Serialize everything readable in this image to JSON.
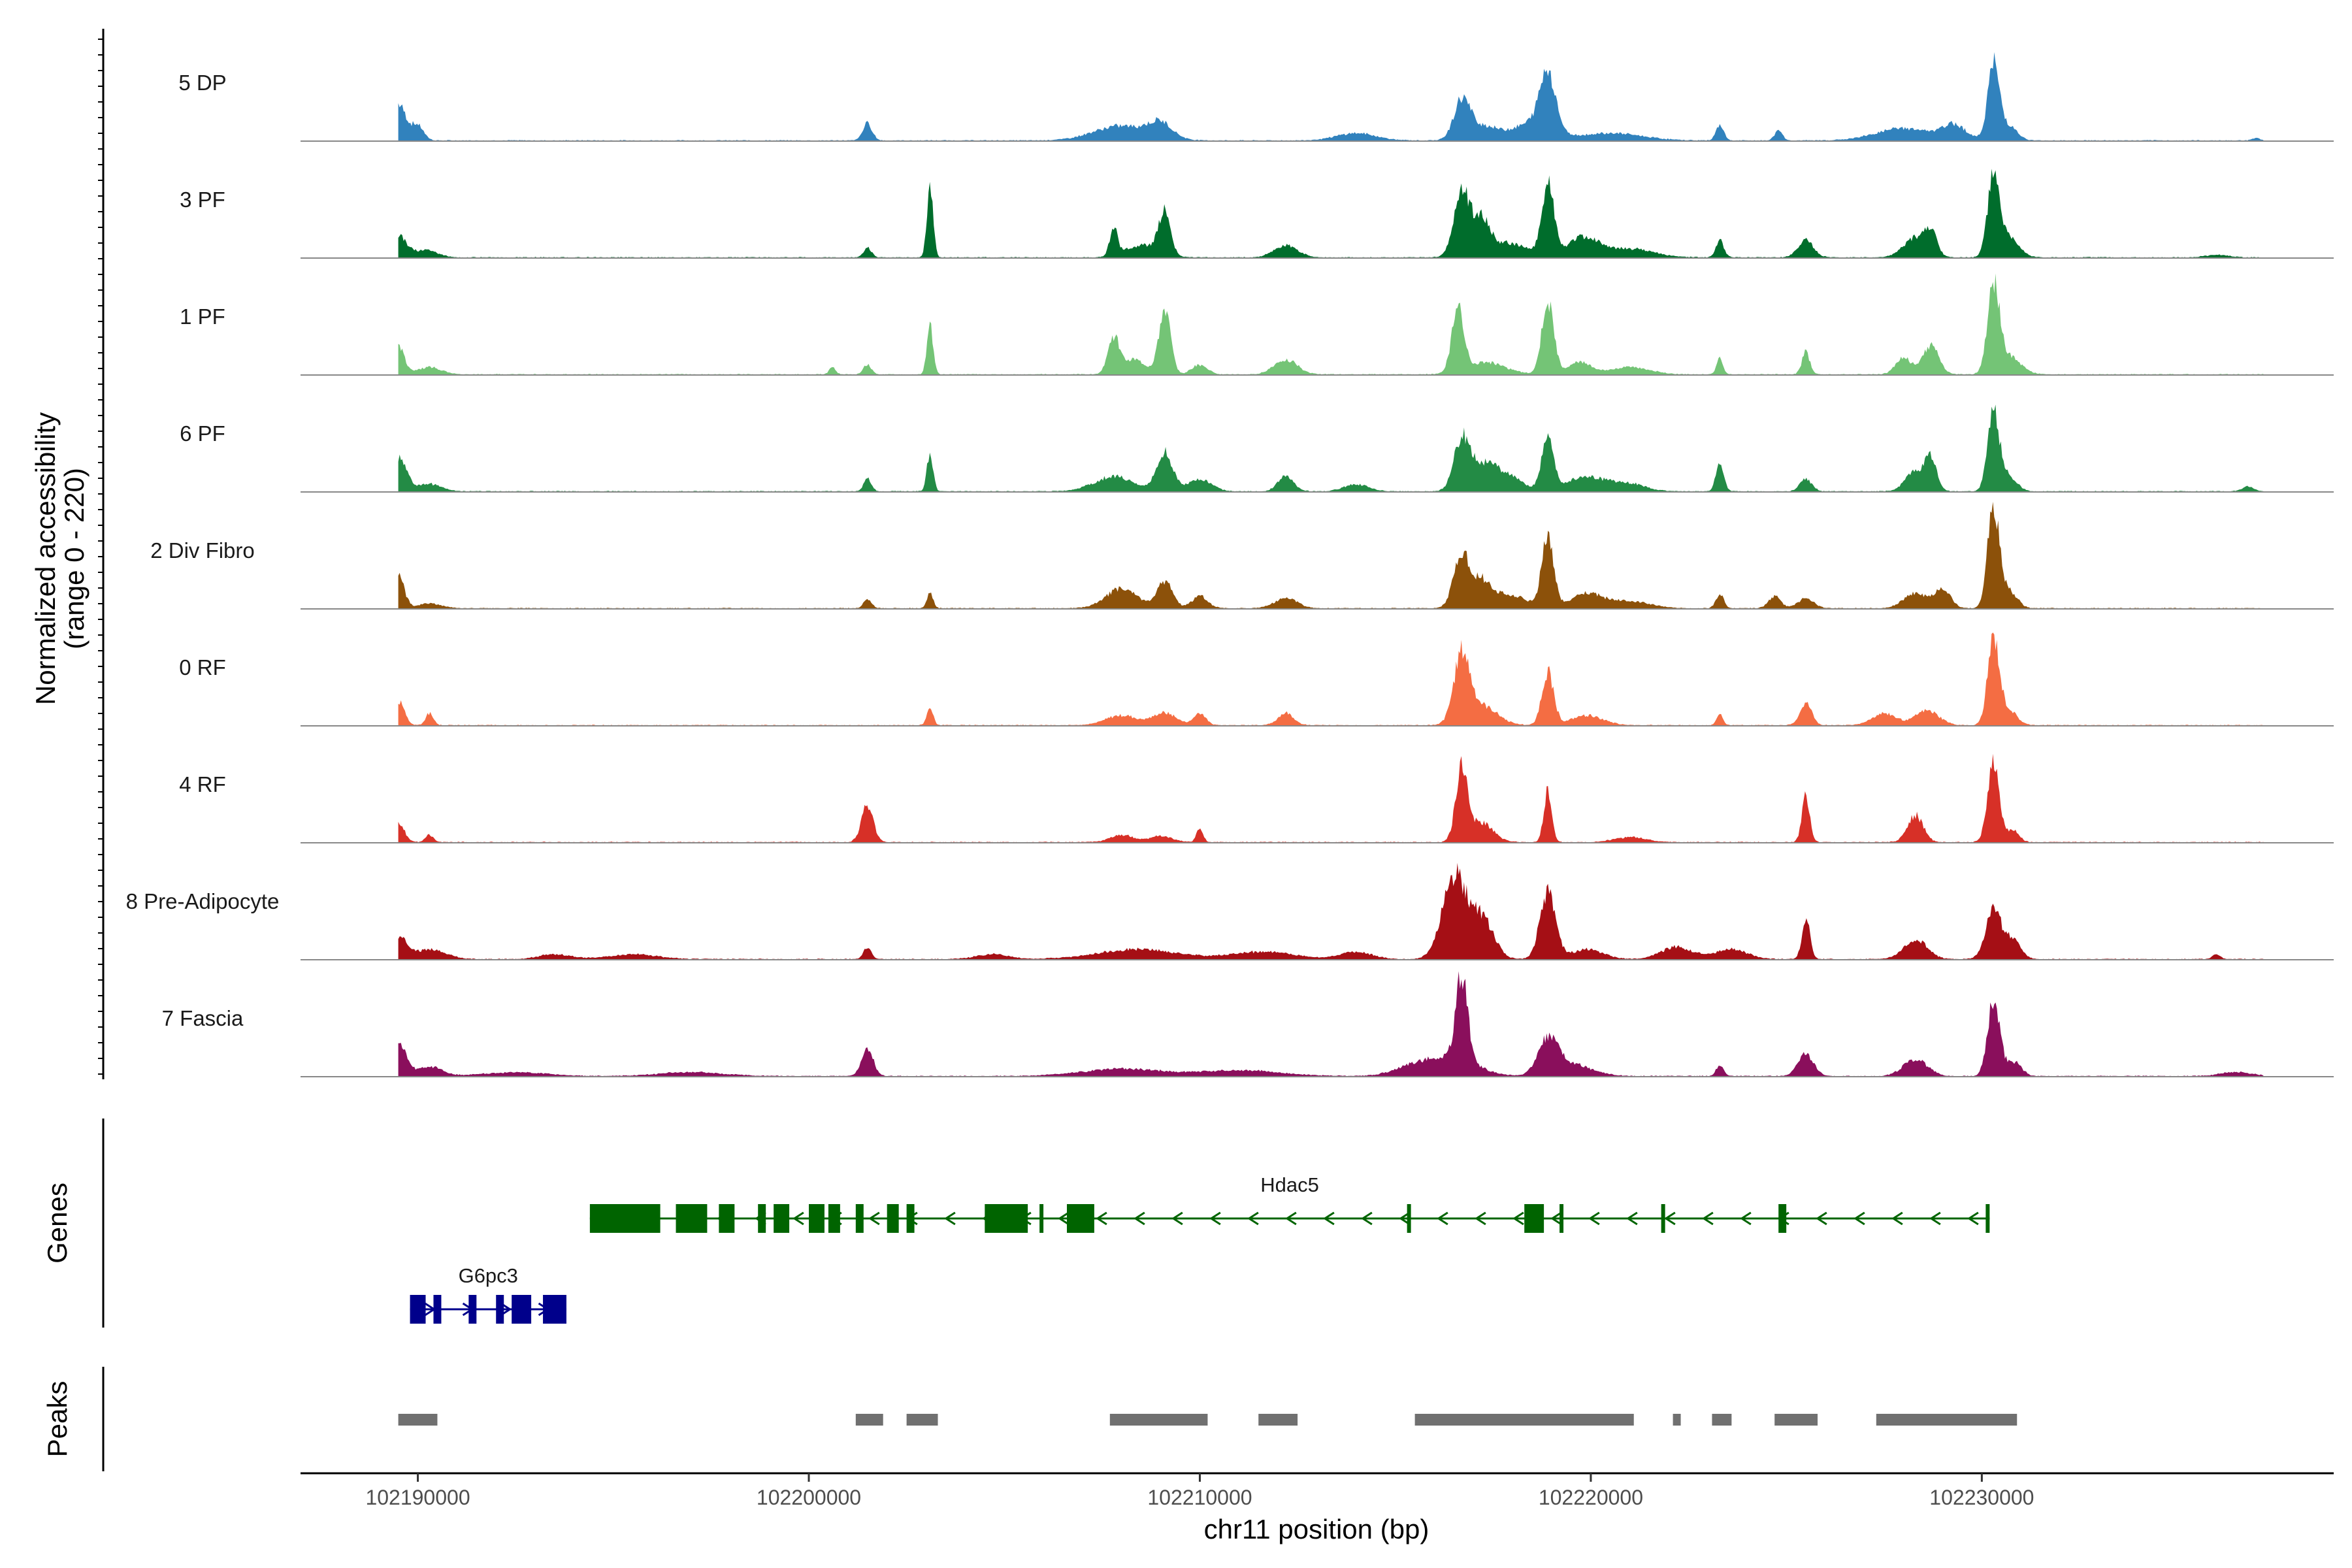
{
  "chart_data": {
    "type": "area",
    "genome_region": "chr11:102187000-102239000",
    "y_axis_title_line1": "Normalized accessibility",
    "y_axis_title_line2": "(range 0 - 220)",
    "y_range": [
      0,
      220
    ],
    "x_axis_title": "chr11 position (bp)",
    "x_range": [
      102187000,
      102239000
    ],
    "x_ticks": [
      102190000,
      102200000,
      102210000,
      102220000,
      102230000
    ],
    "x_tick_labels": [
      "102190000",
      "102200000",
      "102210000",
      "102220000",
      "102230000"
    ],
    "genes_panel_label": "Genes",
    "peaks_panel_label": "Peaks",
    "baseline_level": 1.5,
    "series": [
      {
        "name": "5 DP",
        "color": "#3182bd",
        "peaks": [
          [
            102189500,
            200,
            75
          ],
          [
            102190000,
            150,
            30
          ],
          [
            102201500,
            120,
            35
          ],
          [
            102208000,
            700,
            30
          ],
          [
            102209000,
            300,
            30
          ],
          [
            102214000,
            500,
            15
          ],
          [
            102216700,
            200,
            75
          ],
          [
            102217200,
            400,
            30
          ],
          [
            102218900,
            200,
            120
          ],
          [
            102218500,
            500,
            35
          ],
          [
            102220500,
            800,
            15
          ],
          [
            102223300,
            100,
            30
          ],
          [
            102224800,
            100,
            20
          ],
          [
            102228000,
            700,
            25
          ],
          [
            102229300,
            300,
            30
          ],
          [
            102230300,
            150,
            155
          ],
          [
            102230700,
            200,
            30
          ],
          [
            102237000,
            100,
            5
          ]
        ]
      },
      {
        "name": "3 PF",
        "color": "#006d2c",
        "peaks": [
          [
            102189500,
            200,
            45
          ],
          [
            102190200,
            300,
            15
          ],
          [
            102201500,
            100,
            20
          ],
          [
            102203100,
            80,
            140
          ],
          [
            102207800,
            100,
            55
          ],
          [
            102208500,
            400,
            25
          ],
          [
            102209100,
            150,
            90
          ],
          [
            102212200,
            300,
            25
          ],
          [
            102216700,
            200,
            130
          ],
          [
            102217200,
            200,
            65
          ],
          [
            102217800,
            600,
            30
          ],
          [
            102218900,
            150,
            150
          ],
          [
            102219800,
            400,
            40
          ],
          [
            102221000,
            600,
            18
          ],
          [
            102223300,
            100,
            35
          ],
          [
            102225500,
            200,
            35
          ],
          [
            102228300,
            300,
            40
          ],
          [
            102228700,
            150,
            45
          ],
          [
            102230300,
            150,
            160
          ],
          [
            102230700,
            250,
            40
          ],
          [
            102236000,
            300,
            5
          ]
        ]
      },
      {
        "name": "1 PF",
        "color": "#74c476",
        "peaks": [
          [
            102189500,
            150,
            60
          ],
          [
            102190300,
            300,
            15
          ],
          [
            102200600,
            80,
            15
          ],
          [
            102201500,
            100,
            20
          ],
          [
            102203100,
            80,
            100
          ],
          [
            102207800,
            150,
            70
          ],
          [
            102208300,
            300,
            30
          ],
          [
            102209100,
            150,
            130
          ],
          [
            102210000,
            200,
            20
          ],
          [
            102212200,
            300,
            30
          ],
          [
            102216600,
            150,
            130
          ],
          [
            102217300,
            500,
            25
          ],
          [
            102218900,
            150,
            150
          ],
          [
            102219700,
            300,
            25
          ],
          [
            102221000,
            500,
            15
          ],
          [
            102223300,
            80,
            35
          ],
          [
            102225500,
            100,
            45
          ],
          [
            102228000,
            200,
            35
          ],
          [
            102228700,
            200,
            60
          ],
          [
            102230300,
            150,
            180
          ],
          [
            102230700,
            300,
            35
          ]
        ]
      },
      {
        "name": "6 PF",
        "color": "#238b45",
        "peaks": [
          [
            102189500,
            200,
            70
          ],
          [
            102190300,
            300,
            15
          ],
          [
            102201500,
            100,
            25
          ],
          [
            102203100,
            80,
            75
          ],
          [
            102207800,
            500,
            30
          ],
          [
            102209100,
            200,
            80
          ],
          [
            102210000,
            300,
            25
          ],
          [
            102212200,
            200,
            30
          ],
          [
            102214000,
            300,
            15
          ],
          [
            102216700,
            200,
            105
          ],
          [
            102217200,
            300,
            45
          ],
          [
            102217800,
            400,
            35
          ],
          [
            102218900,
            150,
            115
          ],
          [
            102219900,
            500,
            30
          ],
          [
            102221000,
            400,
            15
          ],
          [
            102223300,
            100,
            55
          ],
          [
            102225500,
            150,
            25
          ],
          [
            102228300,
            250,
            40
          ],
          [
            102228700,
            150,
            60
          ],
          [
            102230300,
            150,
            160
          ],
          [
            102230700,
            200,
            30
          ],
          [
            102236800,
            150,
            10
          ]
        ]
      },
      {
        "name": "2 Div Fibro",
        "color": "#8c510a",
        "peaks": [
          [
            102189500,
            150,
            65
          ],
          [
            102190300,
            300,
            10
          ],
          [
            102201500,
            100,
            20
          ],
          [
            102203100,
            80,
            30
          ],
          [
            102208000,
            400,
            40
          ],
          [
            102209100,
            200,
            55
          ],
          [
            102210000,
            200,
            25
          ],
          [
            102212200,
            300,
            20
          ],
          [
            102216700,
            200,
            110
          ],
          [
            102217200,
            200,
            45
          ],
          [
            102217800,
            500,
            30
          ],
          [
            102218900,
            150,
            150
          ],
          [
            102219900,
            400,
            30
          ],
          [
            102221000,
            500,
            15
          ],
          [
            102223300,
            100,
            30
          ],
          [
            102224700,
            150,
            25
          ],
          [
            102225500,
            200,
            20
          ],
          [
            102228300,
            300,
            30
          ],
          [
            102229000,
            200,
            40
          ],
          [
            102230300,
            150,
            210
          ],
          [
            102230700,
            200,
            35
          ]
        ]
      },
      {
        "name": "0 RF",
        "color": "#f46d43",
        "peaks": [
          [
            102189500,
            150,
            50
          ],
          [
            102190300,
            100,
            25
          ],
          [
            102203100,
            80,
            35
          ],
          [
            102208000,
            400,
            20
          ],
          [
            102209100,
            300,
            25
          ],
          [
            102210000,
            150,
            25
          ],
          [
            102212200,
            200,
            25
          ],
          [
            102216700,
            200,
            135
          ],
          [
            102217200,
            400,
            40
          ],
          [
            102218900,
            150,
            110
          ],
          [
            102219900,
            400,
            20
          ],
          [
            102223300,
            80,
            25
          ],
          [
            102225500,
            150,
            45
          ],
          [
            102227500,
            300,
            25
          ],
          [
            102228600,
            300,
            30
          ],
          [
            102230300,
            150,
            175
          ],
          [
            102230700,
            200,
            30
          ]
        ]
      },
      {
        "name": "4 RF",
        "color": "#d73027",
        "peaks": [
          [
            102189500,
            150,
            40
          ],
          [
            102190300,
            100,
            15
          ],
          [
            102201500,
            150,
            75
          ],
          [
            102208000,
            300,
            15
          ],
          [
            102209000,
            300,
            12
          ],
          [
            102210000,
            80,
            30
          ],
          [
            102216700,
            150,
            155
          ],
          [
            102217200,
            300,
            40
          ],
          [
            102218900,
            100,
            105
          ],
          [
            102221000,
            400,
            10
          ],
          [
            102225500,
            100,
            95
          ],
          [
            102228300,
            200,
            55
          ],
          [
            102230300,
            150,
            165
          ],
          [
            102230800,
            150,
            25
          ]
        ]
      },
      {
        "name": "8 Pre-Adipocyte",
        "color": "#a50f15",
        "peaks": [
          [
            102189500,
            200,
            45
          ],
          [
            102190300,
            400,
            20
          ],
          [
            102193500,
            400,
            10
          ],
          [
            102195500,
            600,
            10
          ],
          [
            102201500,
            100,
            25
          ],
          [
            102204700,
            400,
            10
          ],
          [
            102208400,
            1000,
            20
          ],
          [
            102211600,
            800,
            15
          ],
          [
            102214000,
            400,
            15
          ],
          [
            102216500,
            300,
            170
          ],
          [
            102217200,
            300,
            85
          ],
          [
            102218900,
            200,
            135
          ],
          [
            102219900,
            400,
            20
          ],
          [
            102222200,
            400,
            25
          ],
          [
            102223600,
            400,
            20
          ],
          [
            102225500,
            100,
            85
          ],
          [
            102228300,
            300,
            40
          ],
          [
            102230300,
            200,
            100
          ],
          [
            102230800,
            200,
            40
          ],
          [
            102236000,
            100,
            10
          ]
        ]
      },
      {
        "name": "7 Fascia",
        "color": "#8a0f5c",
        "peaks": [
          [
            102189500,
            200,
            65
          ],
          [
            102190300,
            300,
            20
          ],
          [
            102192500,
            800,
            8
          ],
          [
            102197000,
            800,
            8
          ],
          [
            102201500,
            150,
            55
          ],
          [
            102208000,
            1000,
            15
          ],
          [
            102211000,
            1000,
            12
          ],
          [
            102215500,
            500,
            20
          ],
          [
            102216700,
            150,
            175
          ],
          [
            102216500,
            600,
            35
          ],
          [
            102218900,
            250,
            70
          ],
          [
            102219500,
            500,
            25
          ],
          [
            102223300,
            100,
            20
          ],
          [
            102225500,
            200,
            45
          ],
          [
            102228300,
            300,
            35
          ],
          [
            102230300,
            150,
            160
          ],
          [
            102230800,
            200,
            30
          ],
          [
            102236500,
            400,
            8
          ]
        ]
      }
    ],
    "genes": [
      {
        "name": "Hdac5",
        "color": "#006400",
        "strand": "-",
        "start": 102194400,
        "end": 102230200,
        "exons": [
          [
            102194400,
            102196200
          ],
          [
            102196600,
            102197400
          ],
          [
            102197700,
            102198100
          ],
          [
            102198700,
            102198900
          ],
          [
            102199100,
            102199500
          ],
          [
            102200000,
            102200400
          ],
          [
            102200500,
            102200800
          ],
          [
            102201200,
            102201400
          ],
          [
            102202000,
            102202300
          ],
          [
            102202500,
            102202700
          ],
          [
            102204500,
            102205600
          ],
          [
            102205900,
            102206000
          ],
          [
            102206600,
            102207300
          ],
          [
            102215300,
            102215400
          ],
          [
            102218300,
            102218800
          ],
          [
            102219200,
            102219300
          ],
          [
            102221800,
            102221900
          ],
          [
            102224800,
            102225000
          ],
          [
            102230100,
            102230200
          ]
        ]
      },
      {
        "name": "G6pc3",
        "color": "#00008b",
        "strand": "+",
        "start": 102189800,
        "end": 102193800,
        "exons": [
          [
            102189800,
            102190200
          ],
          [
            102190400,
            102190600
          ],
          [
            102191300,
            102191500
          ],
          [
            102192000,
            102192200
          ],
          [
            102192400,
            102192900
          ],
          [
            102193200,
            102193800
          ]
        ]
      }
    ],
    "peak_regions": [
      [
        102189500,
        102190500
      ],
      [
        102201200,
        102201900
      ],
      [
        102202500,
        102203300
      ],
      [
        102207700,
        102210200
      ],
      [
        102211500,
        102212500
      ],
      [
        102215500,
        102221100
      ],
      [
        102222100,
        102222300
      ],
      [
        102223100,
        102223600
      ],
      [
        102224700,
        102225800
      ],
      [
        102227300,
        102230900
      ]
    ]
  }
}
